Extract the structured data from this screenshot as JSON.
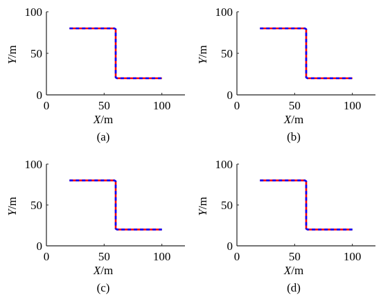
{
  "chart_data": [
    {
      "type": "line",
      "panel_label": "(a)",
      "xlabel": "X/m",
      "ylabel": "Y/m",
      "xlim": [
        0,
        120
      ],
      "ylim": [
        0,
        100
      ],
      "xticks": [
        0,
        50,
        100
      ],
      "yticks": [
        0,
        50,
        100
      ],
      "grid": false,
      "series": [
        {
          "color": "#ff0000",
          "style": "solid",
          "x": [
            20,
            59,
            60,
            60,
            61,
            100
          ],
          "y": [
            80,
            80,
            79,
            21,
            20,
            20
          ]
        },
        {
          "color": "#0000ff",
          "style": "dashed",
          "x": [
            20,
            59,
            60,
            60,
            61,
            100
          ],
          "y": [
            80,
            80,
            79,
            21,
            20,
            20
          ]
        }
      ]
    },
    {
      "type": "line",
      "panel_label": "(b)",
      "xlabel": "X/m",
      "ylabel": "Y/m",
      "xlim": [
        0,
        120
      ],
      "ylim": [
        0,
        100
      ],
      "xticks": [
        0,
        50,
        100
      ],
      "yticks": [
        0,
        50,
        100
      ],
      "grid": false,
      "series": [
        {
          "color": "#ff0000",
          "style": "solid",
          "x": [
            20,
            59,
            60,
            60,
            61,
            100
          ],
          "y": [
            80,
            80,
            79,
            21,
            20,
            20
          ]
        },
        {
          "color": "#0000ff",
          "style": "dashed",
          "x": [
            20,
            59,
            60,
            60,
            61,
            100
          ],
          "y": [
            80,
            80,
            79,
            21,
            20,
            20
          ]
        }
      ]
    },
    {
      "type": "line",
      "panel_label": "(c)",
      "xlabel": "X/m",
      "ylabel": "Y/m",
      "xlim": [
        0,
        120
      ],
      "ylim": [
        0,
        100
      ],
      "xticks": [
        0,
        50,
        100
      ],
      "yticks": [
        0,
        50,
        100
      ],
      "grid": false,
      "series": [
        {
          "color": "#ff0000",
          "style": "solid",
          "x": [
            20,
            59,
            60,
            60,
            61,
            100
          ],
          "y": [
            80,
            80,
            79,
            21,
            20,
            20
          ]
        },
        {
          "color": "#0000ff",
          "style": "dashed",
          "x": [
            20,
            59,
            60,
            60,
            61,
            100
          ],
          "y": [
            80,
            80,
            79,
            21,
            20,
            20
          ]
        }
      ]
    },
    {
      "type": "line",
      "panel_label": "(d)",
      "xlabel": "X/m",
      "ylabel": "Y/m",
      "xlim": [
        0,
        120
      ],
      "ylim": [
        0,
        100
      ],
      "xticks": [
        0,
        50,
        100
      ],
      "yticks": [
        0,
        50,
        100
      ],
      "grid": false,
      "series": [
        {
          "color": "#ff0000",
          "style": "solid",
          "x": [
            20,
            59,
            60,
            60,
            61,
            100
          ],
          "y": [
            80,
            80,
            79,
            21,
            20,
            20
          ]
        },
        {
          "color": "#0000ff",
          "style": "dashed",
          "x": [
            20,
            59,
            60,
            60,
            61,
            100
          ],
          "y": [
            80,
            80,
            79,
            21,
            20,
            20
          ]
        }
      ]
    }
  ]
}
